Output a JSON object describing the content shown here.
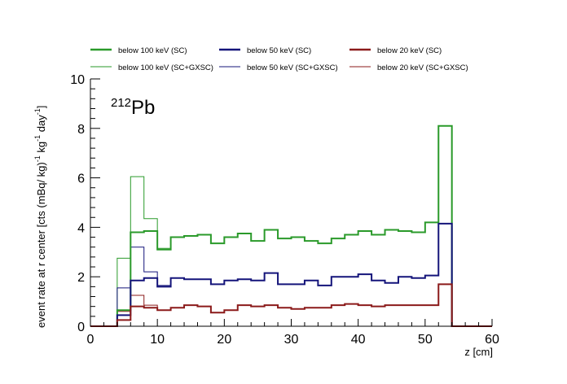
{
  "chart_data": {
    "type": "line",
    "title": "",
    "annotation": {
      "prefix": "212",
      "main": "Pb"
    },
    "xlabel": "z [cm]",
    "ylabel": {
      "main": "event rate at r center [cts (mBq/ kg)",
      "sup1": "-1",
      "mid": " kg",
      "sup2": "-1",
      "mid2": " day",
      "sup3": "-1",
      "end": "]"
    },
    "xlim": [
      0,
      60
    ],
    "ylim": [
      0,
      10
    ],
    "x_ticks": [
      0,
      10,
      20,
      30,
      40,
      50,
      60
    ],
    "y_ticks": [
      0,
      2,
      4,
      6,
      8,
      10
    ],
    "grid": false,
    "legend_position": "top",
    "bin_edges": [
      0,
      2,
      4,
      6,
      8,
      10,
      12,
      14,
      16,
      18,
      20,
      22,
      24,
      26,
      28,
      30,
      32,
      34,
      36,
      38,
      40,
      42,
      44,
      46,
      48,
      50,
      52,
      54,
      56,
      58,
      60
    ],
    "series": [
      {
        "name": "below 100 keV (SC)",
        "color": "#2a9a2a",
        "width": 2,
        "values": [
          0,
          0,
          0.65,
          3.8,
          3.85,
          3.1,
          3.6,
          3.65,
          3.7,
          3.35,
          3.6,
          3.75,
          3.45,
          3.9,
          3.55,
          3.6,
          3.45,
          3.35,
          3.55,
          3.7,
          3.85,
          3.7,
          3.9,
          3.85,
          3.8,
          4.2,
          8.1,
          0,
          0,
          0
        ]
      },
      {
        "name": "below 50 keV (SC)",
        "color": "#14147a",
        "width": 2,
        "values": [
          0,
          0,
          0.45,
          1.85,
          1.95,
          1.6,
          1.95,
          1.9,
          1.9,
          1.7,
          1.85,
          1.9,
          1.85,
          2.15,
          1.7,
          1.7,
          1.85,
          1.65,
          2.0,
          2.0,
          2.1,
          1.85,
          1.75,
          2.0,
          1.95,
          2.05,
          4.15,
          0,
          0,
          0
        ]
      },
      {
        "name": "below 20 keV (SC)",
        "color": "#8b1a1a",
        "width": 2,
        "values": [
          0,
          0,
          0.25,
          0.8,
          0.75,
          0.65,
          0.75,
          0.85,
          0.8,
          0.55,
          0.65,
          0.85,
          0.8,
          0.85,
          0.75,
          0.7,
          0.75,
          0.75,
          0.85,
          0.9,
          0.85,
          0.8,
          0.85,
          0.85,
          0.85,
          0.85,
          1.7,
          0,
          0,
          0
        ]
      },
      {
        "name": "below 100 keV (SC+GXSC)",
        "color": "#2a9a2a",
        "width": 1,
        "values": [
          0,
          0,
          2.75,
          6.05,
          4.35,
          3.15,
          3.6,
          3.65,
          3.7,
          3.35,
          3.6,
          3.75,
          3.45,
          3.9,
          3.55,
          3.6,
          3.45,
          3.35,
          3.55,
          3.7,
          3.85,
          3.7,
          3.9,
          3.85,
          3.8,
          4.2,
          8.1,
          0,
          0,
          0
        ]
      },
      {
        "name": "below 50 keV (SC+GXSC)",
        "color": "#14147a",
        "width": 1,
        "values": [
          0,
          0,
          1.55,
          3.2,
          2.2,
          1.65,
          1.95,
          1.9,
          1.9,
          1.7,
          1.85,
          1.9,
          1.85,
          2.15,
          1.7,
          1.7,
          1.85,
          1.65,
          2.0,
          2.0,
          2.1,
          1.85,
          1.75,
          2.0,
          1.95,
          2.05,
          4.15,
          0,
          0,
          0
        ]
      },
      {
        "name": "below 20 keV (SC+GXSC)",
        "color": "#8b1a1a",
        "width": 1,
        "values": [
          0,
          0,
          0.6,
          1.25,
          0.85,
          0.65,
          0.75,
          0.85,
          0.8,
          0.55,
          0.65,
          0.85,
          0.8,
          0.85,
          0.75,
          0.7,
          0.75,
          0.75,
          0.85,
          0.9,
          0.85,
          0.8,
          0.85,
          0.85,
          0.85,
          0.85,
          1.7,
          0,
          0,
          0
        ]
      }
    ]
  }
}
